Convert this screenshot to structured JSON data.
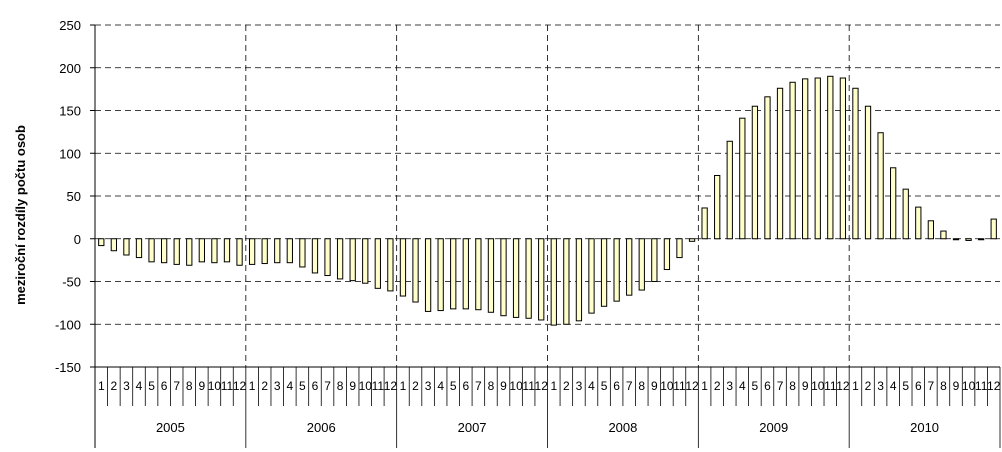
{
  "chart_data": {
    "type": "bar",
    "title": "",
    "ylabel": "meziroční rozdíly počtu osob",
    "xlabel": "",
    "ylim": [
      -150,
      250
    ],
    "yticks": [
      -150,
      -100,
      -50,
      0,
      50,
      100,
      150,
      200,
      250
    ],
    "grid": "dashed",
    "legend": "none",
    "years": [
      "2005",
      "2006",
      "2007",
      "2008",
      "2009",
      "2010"
    ],
    "months": [
      "1",
      "2",
      "3",
      "4",
      "5",
      "6",
      "7",
      "8",
      "9",
      "10",
      "11",
      "12"
    ],
    "bar_color": "#ffffcc",
    "bar_stroke": "#000000",
    "series": [
      {
        "values": [
          -8,
          -14,
          -19,
          -22,
          -27,
          -28,
          -30,
          -31,
          -27,
          -28,
          -27,
          -31,
          -30,
          -29,
          -28,
          -28,
          -33,
          -40,
          -43,
          -47,
          -49,
          -52,
          -58,
          -61,
          -67,
          -74,
          -85,
          -84,
          -82,
          -82,
          -83,
          -86,
          -90,
          -92,
          -93,
          -95,
          -101,
          -100,
          -96,
          -87,
          -79,
          -73,
          -66,
          -60,
          -50,
          -36,
          -22,
          -3,
          36,
          74,
          114,
          141,
          155,
          166,
          176,
          183,
          187,
          188,
          190,
          188,
          176,
          155,
          124,
          83,
          58,
          37,
          21,
          9,
          0,
          -2,
          0,
          23
        ]
      }
    ]
  }
}
